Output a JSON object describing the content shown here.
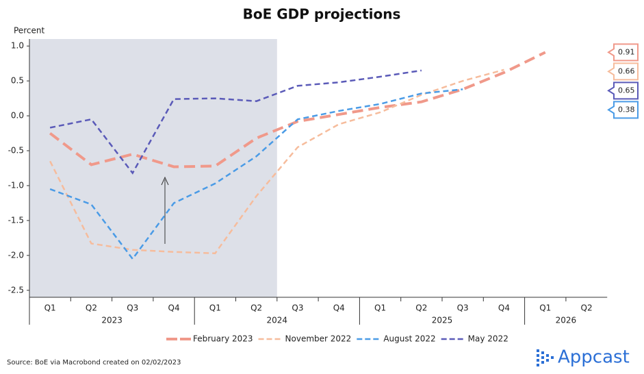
{
  "chart_data": {
    "type": "line",
    "title": "BoE GDP projections",
    "y_label": "Percent",
    "categories": [
      "Q1",
      "Q2",
      "Q3",
      "Q4",
      "Q1",
      "Q2",
      "Q3",
      "Q4",
      "Q1",
      "Q2",
      "Q3",
      "Q4",
      "Q1",
      "Q2"
    ],
    "years": [
      "2023",
      "2024",
      "2025",
      "2026"
    ],
    "ylim": [
      -2.6,
      1.1
    ],
    "yticks": [
      {
        "value": 1.0,
        "label": "1.0"
      },
      0.5,
      {
        "value": 0.0,
        "label": "0.0"
      },
      -0.5,
      {
        "value": -1.0,
        "label": "-1.0"
      },
      -1.5,
      {
        "value": -2.0,
        "label": "-2.0"
      },
      -2.5
    ],
    "series": [
      {
        "name": "February 2023",
        "color": "#f0998a",
        "line_width": 4,
        "values": [
          -0.25,
          -0.7,
          -0.55,
          -0.73,
          -0.72,
          -0.32,
          -0.08,
          0.02,
          0.12,
          0.2,
          0.38,
          0.62,
          0.91,
          null
        ]
      },
      {
        "name": "November 2022",
        "color": "#f6bc9c",
        "line_width": 2.5,
        "values": [
          -0.65,
          -1.83,
          -1.92,
          -1.95,
          -1.97,
          -1.15,
          -0.45,
          -0.12,
          0.05,
          0.3,
          0.5,
          0.66,
          null,
          null
        ]
      },
      {
        "name": "August 2022",
        "color": "#4a9be6",
        "line_width": 2.5,
        "values": [
          -1.05,
          -1.27,
          -2.05,
          -1.25,
          -0.97,
          -0.58,
          -0.05,
          0.07,
          0.17,
          0.32,
          0.38,
          null,
          null,
          null
        ]
      },
      {
        "name": "May 2022",
        "color": "#5a5ab8",
        "line_width": 2.5,
        "values": [
          -0.17,
          -0.05,
          -0.82,
          0.24,
          0.25,
          0.21,
          0.43,
          0.48,
          0.56,
          0.65,
          null,
          null,
          null,
          null
        ]
      }
    ],
    "source": "Source: BoE via Macrobond created on 02/02/2023",
    "logo": "Appcast"
  }
}
